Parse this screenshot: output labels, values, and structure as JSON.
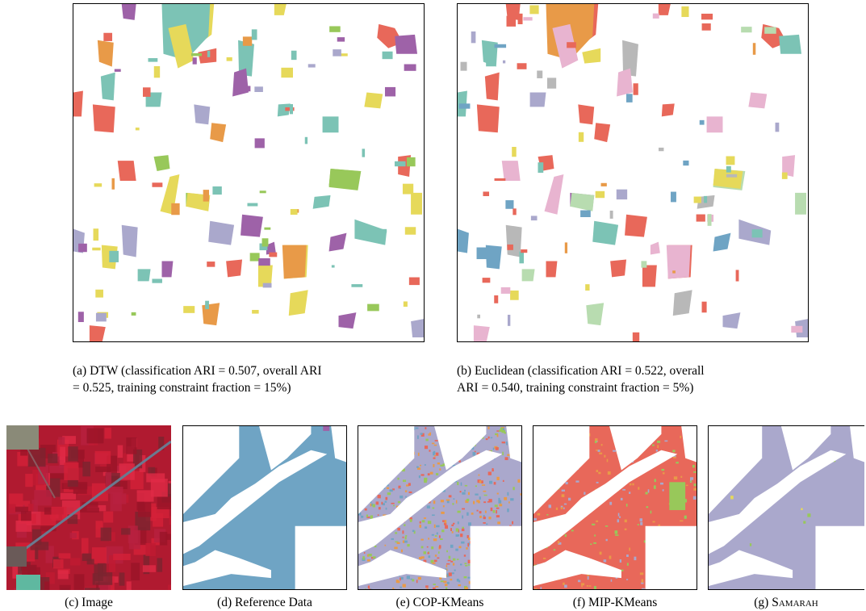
{
  "figure": {
    "top_row": [
      {
        "id": "a",
        "caption_line1": "(a) DTW (classification ARI = 0.507, overall ARI",
        "caption_line2": "= 0.525, training constraint fraction = 15%)"
      },
      {
        "id": "b",
        "caption_line1": "(b) Euclidean (classification ARI = 0.522, overall",
        "caption_line2": "ARI = 0.540, training constraint fraction = 5%)"
      }
    ],
    "bottom_row": [
      {
        "id": "c",
        "caption": "(c) Image"
      },
      {
        "id": "d",
        "caption": "(d) Reference Data"
      },
      {
        "id": "e",
        "caption": "(e) COP-KMeans"
      },
      {
        "id": "f",
        "caption": "(f) MIP-KMeans"
      },
      {
        "id": "g",
        "caption_prefix": "(g) ",
        "caption_sc": "Samarah"
      }
    ]
  },
  "colors": {
    "yellow": "#e6d95a",
    "red": "#e8685a",
    "teal": "#7cc3b5",
    "green": "#98c85a",
    "orange": "#e89a48",
    "lavender": "#aaa8cc",
    "purple": "#9e62a8",
    "blue": "#6fa4c4",
    "pink": "#e8b4d0",
    "grey": "#b8b8b8",
    "lightgreen": "#b8dcb0",
    "image_red": "#d42038"
  }
}
